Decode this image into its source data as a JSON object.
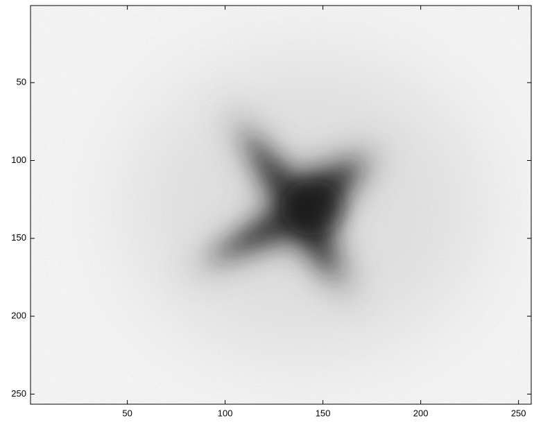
{
  "chart_data": {
    "type": "image",
    "colormap": "gray",
    "xlim": [
      0.5,
      256.5
    ],
    "ylim": [
      0.5,
      256.5
    ],
    "y_reversed": true,
    "xticks": [
      50,
      100,
      150,
      200,
      250
    ],
    "yticks": [
      50,
      100,
      150,
      200,
      250
    ]
  }
}
